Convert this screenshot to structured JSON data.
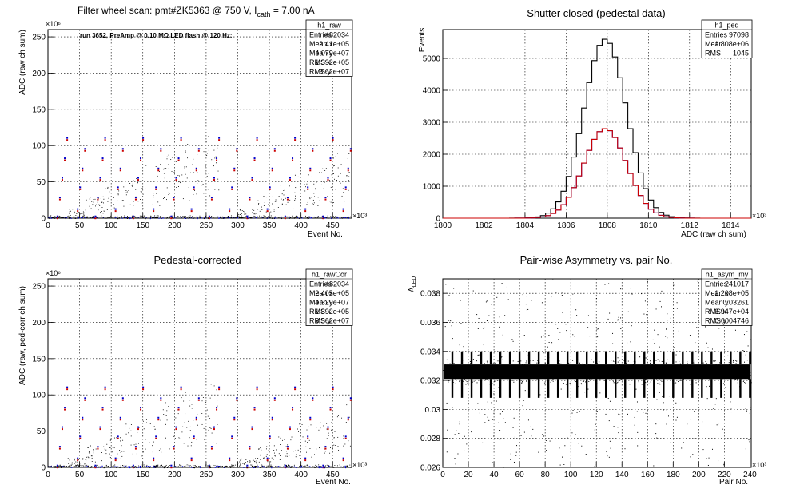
{
  "chart_data": [
    {
      "type": "scatter",
      "title_main": "Filter wheel scan: pmt#ZK5363 @   750 V, I",
      "title_sub": "cath",
      "title_tail": " = 7.00 nA",
      "annotation": "run 3652, PreAmp @ 0.10 MΩ LED flash @  120 Hz:",
      "xlabel": "Event No.",
      "ylabel": "ADC (raw ch sum)",
      "x_exponent": "×10³",
      "y_exponent": "×10⁶",
      "xlim": [
        0,
        480000
      ],
      "ylim": [
        0,
        260
      ],
      "x_ticks": [
        "0",
        "50",
        "100",
        "150",
        "200",
        "250",
        "300",
        "350",
        "400",
        "450"
      ],
      "y_ticks": [
        "0",
        "50",
        "100",
        "150",
        "200",
        "250"
      ],
      "levels": [
        2,
        12,
        28,
        42,
        55,
        68,
        82,
        95,
        110
      ],
      "level_period_events": 30000,
      "colors": {
        "marker_a": "#cc0000",
        "marker_b": "#0000cc",
        "points": "#000000"
      },
      "stats": {
        "name": "h1_raw",
        "rows": [
          {
            "label": "Entries",
            "value": "482034"
          },
          {
            "label": "Mean x",
            "value": "2.41e+05"
          },
          {
            "label": "Mean y",
            "value": "4.079e+07"
          },
          {
            "label": "RMS x",
            "value": "1.392e+05"
          },
          {
            "label": "RMS y",
            "value": "3.62e+07"
          }
        ]
      }
    },
    {
      "type": "histogram",
      "title": "Shutter closed (pedestal data)",
      "xlabel": "ADC (raw ch sum)",
      "ylabel": "Events",
      "x_exponent": "×10³",
      "xlim": [
        1800,
        1815
      ],
      "ylim": [
        0,
        5900
      ],
      "x_ticks": [
        "1800",
        "1802",
        "1804",
        "1806",
        "1808",
        "1810",
        "1812",
        "1814"
      ],
      "y_ticks": [
        "0",
        "1000",
        "2000",
        "3000",
        "4000",
        "5000"
      ],
      "bin_width": 0.25,
      "series": [
        {
          "color": "#000000",
          "mean": 1807.9,
          "sigma": 1.04,
          "peak": 5600
        },
        {
          "color": "#0000cc",
          "mean": 1807.9,
          "sigma": 1.04,
          "peak": 2800
        },
        {
          "color": "#cc0000",
          "mean": 1807.9,
          "sigma": 1.04,
          "peak": 2800
        }
      ],
      "stats": {
        "name": "h1_ped",
        "rows": [
          {
            "label": "Entries",
            "value": "97098"
          },
          {
            "label": "Mean",
            "value": "1.808e+06"
          },
          {
            "label": "RMS",
            "value": "1045"
          }
        ]
      }
    },
    {
      "type": "scatter",
      "title": "Pedestal-corrected",
      "xlabel": "Event No.",
      "ylabel": "ADC (raw, ped-corr ch sum)",
      "x_exponent": "×10³",
      "y_exponent": "×10⁶",
      "xlim": [
        0,
        480000
      ],
      "ylim": [
        0,
        260
      ],
      "x_ticks": [
        "0",
        "50",
        "100",
        "150",
        "200",
        "250",
        "300",
        "350",
        "400",
        "450"
      ],
      "y_ticks": [
        "0",
        "50",
        "100",
        "150",
        "200",
        "250"
      ],
      "levels": [
        2,
        12,
        28,
        42,
        55,
        68,
        82,
        95,
        110
      ],
      "level_period_events": 30000,
      "colors": {
        "marker_a": "#cc0000",
        "marker_b": "#0000cc",
        "points": "#000000"
      },
      "stats": {
        "name": "h1_rawCor",
        "rows": [
          {
            "label": "Entries",
            "value": "482034"
          },
          {
            "label": "Mean x",
            "value": "2.405e+05"
          },
          {
            "label": "Mean y",
            "value": "4.329e+07"
          },
          {
            "label": "RMS x",
            "value": "1.392e+05"
          },
          {
            "label": "RMS y",
            "value": "3.562e+07"
          }
        ]
      }
    },
    {
      "type": "scatter",
      "title": "Pair-wise Asymmetry vs. pair No.",
      "xlabel": "Pair No.",
      "ylabel": "A",
      "ylabel_sub": "LED",
      "x_exponent": "×10³",
      "xlim": [
        0,
        241000
      ],
      "ylim": [
        0.026,
        0.039
      ],
      "x_ticks": [
        "0",
        "20",
        "40",
        "60",
        "80",
        "100",
        "120",
        "140",
        "160",
        "180",
        "200",
        "220",
        "240"
      ],
      "y_ticks": [
        "0.026",
        "0.028",
        "0.03",
        "0.032",
        "0.034",
        "0.036",
        "0.038"
      ],
      "band_center": 0.0326,
      "band_halfwidth": 0.0005,
      "spike_period_pairs": 15000,
      "spike_low": 0.0308,
      "spike_high": 0.034,
      "stats": {
        "name": "h1_asym_my",
        "rows": [
          {
            "label": "Entries",
            "value": "241017"
          },
          {
            "label": "Mean x",
            "value": "1.208e+05"
          },
          {
            "label": "Mean y",
            "value": "0.03261"
          },
          {
            "label": "RMS x",
            "value": "6.947e+04"
          },
          {
            "label": "RMS y",
            "value": "0.0004746"
          }
        ]
      }
    }
  ]
}
